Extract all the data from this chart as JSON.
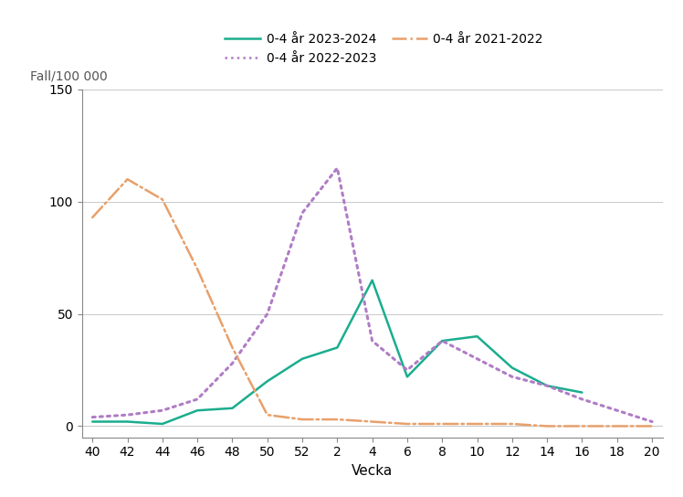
{
  "ylabel": "Fall/100 000",
  "xlabel": "Vecka",
  "xlim_labels": [
    40,
    42,
    44,
    46,
    48,
    50,
    52,
    2,
    4,
    6,
    8,
    10,
    12,
    14,
    16,
    18,
    20
  ],
  "ylim": [
    -5,
    150
  ],
  "yticks": [
    0,
    50,
    100,
    150
  ],
  "series": {
    "2023-2024": {
      "label": "0-4 år 2023-2024",
      "color": "#1aad8e",
      "linestyle": "solid",
      "linewidth": 1.8,
      "x_indices": [
        0,
        1,
        2,
        3,
        4,
        5,
        6,
        7,
        8,
        9,
        10,
        11,
        12,
        13,
        14
      ],
      "values": [
        2,
        2,
        1,
        7,
        8,
        20,
        30,
        35,
        65,
        22,
        38,
        40,
        26,
        18,
        15
      ]
    },
    "2022-2023": {
      "label": "0-4 år 2022-2023",
      "color": "#b07cc6",
      "linestyle": "dotted",
      "linewidth": 2.2,
      "x_indices": [
        0,
        1,
        2,
        3,
        4,
        5,
        6,
        7,
        8,
        9,
        10,
        11,
        12,
        13,
        14,
        15,
        16
      ],
      "values": [
        4,
        5,
        7,
        12,
        28,
        50,
        95,
        115,
        38,
        25,
        38,
        30,
        22,
        18,
        12,
        7,
        2
      ]
    },
    "2021-2022": {
      "label": "0-4 år 2021-2022",
      "color": "#e8a06b",
      "linestyle": "dashdot",
      "linewidth": 1.8,
      "x_indices": [
        0,
        1,
        2,
        3,
        4,
        5,
        6,
        7,
        8,
        9,
        10,
        11,
        12,
        13,
        14,
        15,
        16
      ],
      "values": [
        93,
        110,
        101,
        70,
        35,
        5,
        3,
        3,
        2,
        1,
        1,
        1,
        1,
        0,
        0,
        0,
        0
      ]
    }
  },
  "legend": [
    {
      "label": "0-4 år 2023-2024",
      "color": "#1aad8e",
      "linestyle": "solid"
    },
    {
      "label": "0-4 år 2022-2023",
      "color": "#b07cc6",
      "linestyle": "dotted"
    },
    {
      "label": "0-4 år 2021-2022",
      "color": "#e8a06b",
      "linestyle": "dashdot"
    }
  ],
  "background_color": "#ffffff",
  "grid_color": "#c8c8c8"
}
